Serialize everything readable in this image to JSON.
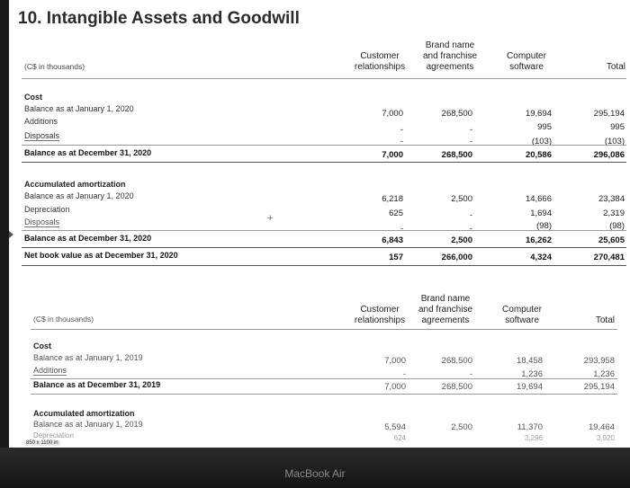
{
  "title": "10. Intangible Assets and Goodwill",
  "columns": {
    "customer": [
      "Customer",
      "relationships"
    ],
    "brand": [
      "Brand name",
      "and franchise",
      "agreements"
    ],
    "software": [
      "Computer",
      "software"
    ],
    "total": "Total"
  },
  "t1": {
    "unit": "(C$ in thousands)",
    "cost_heading": "Cost",
    "cost_rows": [
      {
        "label": "Balance as at January 1, 2020",
        "v": [
          "7,000",
          "268,500",
          "19,694",
          "295,194"
        ]
      },
      {
        "label": "Additions",
        "v": [
          "-",
          "-",
          "995",
          "995"
        ]
      },
      {
        "label": "Disposals",
        "v": [
          "-",
          "-",
          "(103)",
          "(103)"
        ]
      },
      {
        "label": "Balance as at December 31, 2020",
        "v": [
          "7,000",
          "268,500",
          "20,586",
          "296,086"
        ]
      }
    ],
    "amort_heading": "Accumulated amortization",
    "amort_rows": [
      {
        "label": "Balance as at January 1, 2020",
        "v": [
          "6,218",
          "2,500",
          "14,666",
          "23,384"
        ]
      },
      {
        "label": "Depreciation",
        "v": [
          "625",
          "-",
          "1,694",
          "2,319"
        ]
      },
      {
        "label": "Disposals",
        "v": [
          "-",
          "-",
          "(98)",
          "(98)"
        ]
      },
      {
        "label": "Balance as at December 31, 2020",
        "v": [
          "6,843",
          "2,500",
          "16,262",
          "25,605"
        ]
      },
      {
        "label": "Net book value as at December 31, 2020",
        "v": [
          "157",
          "266,000",
          "4,324",
          "270,481"
        ]
      }
    ]
  },
  "t2": {
    "unit": "(C$ in thousands)",
    "cost_heading": "Cost",
    "cost_rows": [
      {
        "label": "Balance as at January 1, 2019",
        "v": [
          "7,000",
          "268,500",
          "18,458",
          "293,958"
        ]
      },
      {
        "label": "Additions",
        "v": [
          "-",
          "-",
          "1,236",
          "1,236"
        ]
      },
      {
        "label": "Balance as at December 31, 2019",
        "v": [
          "7,000",
          "268,500",
          "19,694",
          "295,194"
        ]
      }
    ],
    "amort_heading": "Accumulated amortization",
    "amort_rows": [
      {
        "label": "Balance as at January 1, 2019",
        "v": [
          "5,594",
          "2,500",
          "11,370",
          "19,464"
        ]
      },
      {
        "label": "Depreciation",
        "v": [
          "624",
          "",
          "3,296",
          "3,920"
        ]
      }
    ]
  },
  "status_text": "850 x 1100 in",
  "laptop_label": "MacBook Air"
}
